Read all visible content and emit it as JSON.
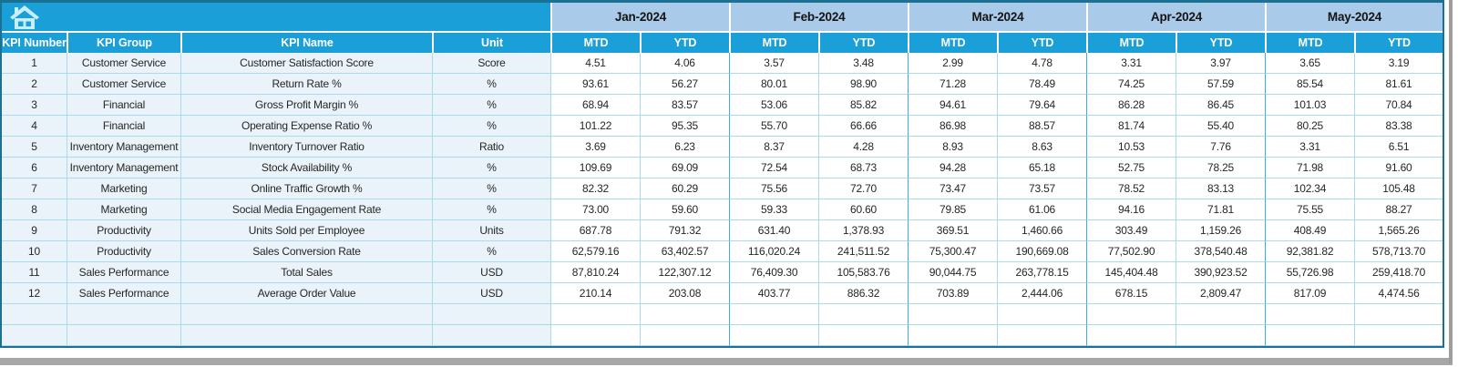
{
  "table": {
    "columns": [
      "KPI Number",
      "KPI Group",
      "KPI Name",
      "Unit"
    ],
    "months": [
      "Jan-2024",
      "Feb-2024",
      "Mar-2024",
      "Apr-2024",
      "May-2024"
    ],
    "sub_columns": [
      "MTD",
      "YTD"
    ],
    "rows": [
      {
        "number": "1",
        "group": "Customer Service",
        "name": "Customer Satisfaction Score",
        "unit": "Score",
        "values": [
          "4.51",
          "4.06",
          "3.57",
          "3.48",
          "2.99",
          "4.78",
          "3.31",
          "3.97",
          "3.65",
          "3.19"
        ]
      },
      {
        "number": "2",
        "group": "Customer Service",
        "name": "Return Rate %",
        "unit": "%",
        "values": [
          "93.61",
          "56.27",
          "80.01",
          "98.90",
          "71.28",
          "78.49",
          "74.25",
          "57.59",
          "85.54",
          "81.61"
        ]
      },
      {
        "number": "3",
        "group": "Financial",
        "name": "Gross Profit Margin %",
        "unit": "%",
        "values": [
          "68.94",
          "83.57",
          "53.06",
          "85.82",
          "94.61",
          "79.64",
          "86.28",
          "86.45",
          "101.03",
          "70.84"
        ]
      },
      {
        "number": "4",
        "group": "Financial",
        "name": "Operating Expense Ratio %",
        "unit": "%",
        "values": [
          "101.22",
          "95.35",
          "55.70",
          "66.66",
          "86.98",
          "88.57",
          "81.74",
          "55.40",
          "80.25",
          "83.38"
        ]
      },
      {
        "number": "5",
        "group": "Inventory Management",
        "name": "Inventory Turnover Ratio",
        "unit": "Ratio",
        "values": [
          "3.69",
          "6.23",
          "8.37",
          "4.28",
          "8.93",
          "8.63",
          "10.53",
          "7.76",
          "3.31",
          "6.51"
        ]
      },
      {
        "number": "6",
        "group": "Inventory Management",
        "name": "Stock Availability %",
        "unit": "%",
        "values": [
          "109.69",
          "69.09",
          "72.54",
          "68.73",
          "94.28",
          "65.18",
          "52.75",
          "78.25",
          "71.98",
          "91.60"
        ]
      },
      {
        "number": "7",
        "group": "Marketing",
        "name": "Online Traffic Growth %",
        "unit": "%",
        "values": [
          "82.32",
          "60.29",
          "75.56",
          "72.70",
          "73.47",
          "73.57",
          "78.52",
          "83.13",
          "102.34",
          "105.48"
        ]
      },
      {
        "number": "8",
        "group": "Marketing",
        "name": "Social Media Engagement Rate",
        "unit": "%",
        "values": [
          "73.00",
          "59.60",
          "59.33",
          "60.60",
          "79.85",
          "61.06",
          "94.16",
          "71.81",
          "75.55",
          "88.27"
        ]
      },
      {
        "number": "9",
        "group": "Productivity",
        "name": "Units Sold per Employee",
        "unit": "Units",
        "values": [
          "687.78",
          "791.32",
          "631.40",
          "1,378.93",
          "369.51",
          "1,460.66",
          "303.49",
          "1,159.26",
          "408.49",
          "1,565.26"
        ]
      },
      {
        "number": "10",
        "group": "Productivity",
        "name": "Sales Conversion Rate",
        "unit": "%",
        "values": [
          "62,579.16",
          "63,402.57",
          "116,020.24",
          "241,511.52",
          "75,300.47",
          "190,669.08",
          "77,502.90",
          "378,540.48",
          "92,381.82",
          "578,713.70"
        ]
      },
      {
        "number": "11",
        "group": "Sales Performance",
        "name": "Total Sales",
        "unit": "USD",
        "values": [
          "87,810.24",
          "122,307.12",
          "76,409.30",
          "105,583.76",
          "90,044.75",
          "263,778.15",
          "145,404.48",
          "390,923.52",
          "55,726.98",
          "259,418.70"
        ]
      },
      {
        "number": "12",
        "group": "Sales Performance",
        "name": "Average Order Value",
        "unit": "USD",
        "values": [
          "210.14",
          "203.08",
          "403.77",
          "886.32",
          "703.89",
          "2,444.06",
          "678.15",
          "2,809.47",
          "817.09",
          "4,474.56"
        ]
      }
    ],
    "empty_row_count": 2
  },
  "colors": {
    "header_cyan": "#1b9fd8",
    "month_band_blue": "#a9cbe9",
    "left_column_tint": "#e9f3f9",
    "grid_line": "#a9dbea",
    "group_divider": "#3faedd",
    "outer_border": "#1b7193",
    "home_icon_fill": "#c7eef9",
    "text_dark": "#262626"
  }
}
